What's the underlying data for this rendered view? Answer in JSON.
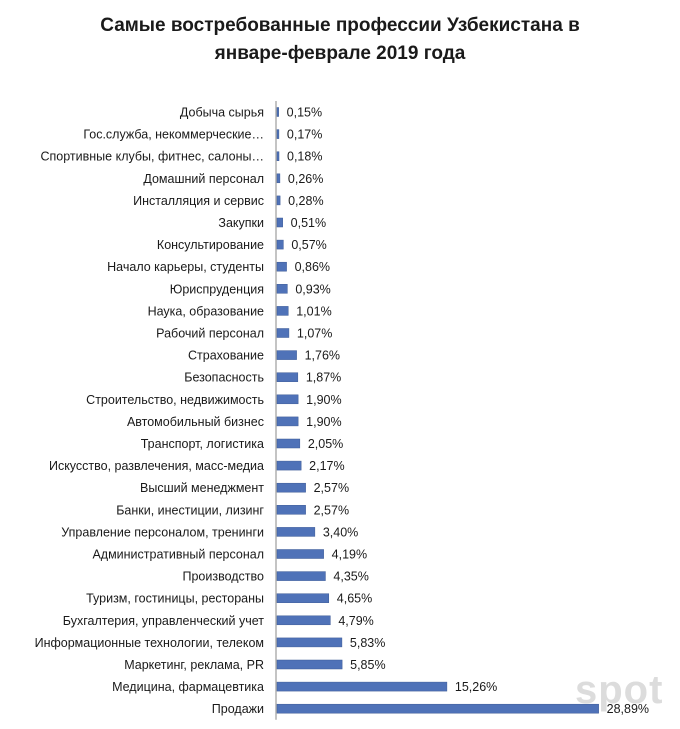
{
  "chart_data": {
    "type": "bar",
    "orientation": "horizontal",
    "title_line1": "Самые востребованные профессии Узбекистана в",
    "title_line2": "январе-феврале 2019 года",
    "categories": [
      "Добыча сырья",
      "Гос.служба, некоммерческие…",
      "Спортивные клубы, фитнес, салоны…",
      "Домашний персонал",
      "Инсталляция и сервис",
      "Закупки",
      "Консультирование",
      "Начало карьеры, студенты",
      "Юриспруденция",
      "Наука, образование",
      "Рабочий персонал",
      "Страхование",
      "Безопасность",
      "Строительство, недвижимость",
      "Автомобильный бизнес",
      "Транспорт, логистика",
      "Искусство, развлечения, масс-медиа",
      "Высший менеджмент",
      "Банки, инестиции,  лизинг",
      "Управление персоналом, тренинги",
      "Административный персонал",
      "Производство",
      "Туризм, гостиницы, рестораны",
      "Бухгалтерия, управленческий учет",
      "Информационные технологии, телеком",
      "Маркетинг, реклама, PR",
      "Медицина, фармацевтика",
      "Продажи"
    ],
    "values": [
      0.15,
      0.17,
      0.18,
      0.26,
      0.28,
      0.51,
      0.57,
      0.86,
      0.93,
      1.01,
      1.07,
      1.76,
      1.87,
      1.9,
      1.9,
      2.05,
      2.17,
      2.57,
      2.57,
      3.4,
      4.19,
      4.35,
      4.65,
      4.79,
      5.83,
      5.85,
      15.26,
      28.89
    ],
    "value_labels": [
      "0,15%",
      "0,17%",
      "0,18%",
      "0,26%",
      "0,28%",
      "0,51%",
      "0,57%",
      "0,86%",
      "0,93%",
      "1,01%",
      "1,07%",
      "1,76%",
      "1,87%",
      "1,90%",
      "1,90%",
      "2,05%",
      "2,17%",
      "2,57%",
      "2,57%",
      "3,40%",
      "4,19%",
      "4,35%",
      "4,65%",
      "4,79%",
      "5,83%",
      "5,85%",
      "15,26%",
      "28,89%"
    ],
    "xlim": [
      0,
      30
    ],
    "grid": false,
    "legend": "none",
    "colors": {
      "bar": "#4f72b8",
      "bar_border": "#3c5a96",
      "axis": "#888888"
    }
  },
  "watermark": "spot"
}
